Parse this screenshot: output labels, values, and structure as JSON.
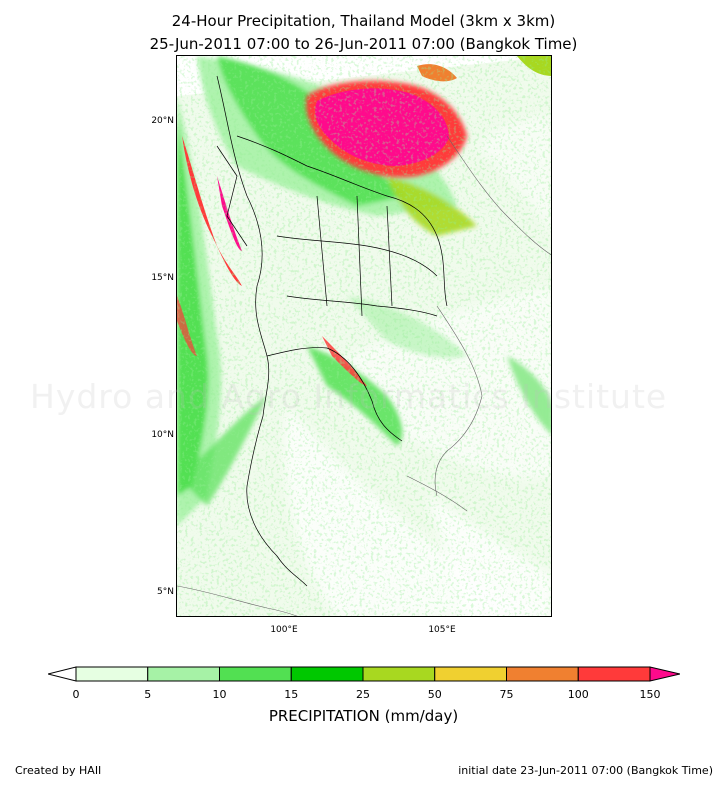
{
  "title_line1": "24-Hour Precipitation, Thailand Model (3km x 3km)",
  "title_line2": "25-Jun-2011 07:00 to 26-Jun-2011 07:00 (Bangkok Time)",
  "lat_labels": [
    "20°N",
    "15°N",
    "10°N",
    "5°N"
  ],
  "lon_labels": [
    "100°E",
    "105°E"
  ],
  "watermark": "Hydro and Agro Informatics Institute",
  "colorbar": {
    "label": "PRECIPITATION (mm/day)",
    "ticks": [
      "0",
      "5",
      "10",
      "15",
      "25",
      "50",
      "75",
      "100",
      "150"
    ],
    "colors": [
      "#e6ffe2",
      "#a6f2a6",
      "#52e052",
      "#00c800",
      "#a8d820",
      "#f0d030",
      "#f08030",
      "#ff3a3a"
    ],
    "under_color": "#ffffff",
    "over_color": "#ff0a8c"
  },
  "footer": {
    "credit": "Created by HAII",
    "init_date": "initial date 23-Jun-2011 07:00 (Bangkok Time)"
  }
}
